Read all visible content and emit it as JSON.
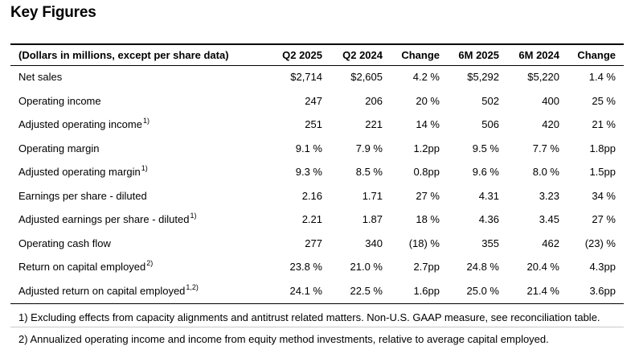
{
  "title": "Key Figures",
  "columns": [
    "(Dollars in millions, except per share data)",
    "Q2 2025",
    "Q2 2024",
    "Change",
    "6M 2025",
    "6M 2024",
    "Change"
  ],
  "rows": [
    {
      "label": "Net sales",
      "sup": "",
      "values": [
        "$2,714",
        "$2,605",
        "4.2 %",
        "$5,292",
        "$5,220",
        "1.4 %"
      ]
    },
    {
      "label": "Operating income",
      "sup": "",
      "values": [
        "247",
        "206",
        "20 %",
        "502",
        "400",
        "25 %"
      ]
    },
    {
      "label": "Adjusted operating income",
      "sup": "1)",
      "values": [
        "251",
        "221",
        "14 %",
        "506",
        "420",
        "21 %"
      ]
    },
    {
      "label": "Operating margin",
      "sup": "",
      "values": [
        "9.1 %",
        "7.9 %",
        "1.2pp",
        "9.5 %",
        "7.7 %",
        "1.8pp"
      ]
    },
    {
      "label": "Adjusted operating margin",
      "sup": "1)",
      "values": [
        "9.3 %",
        "8.5 %",
        "0.8pp",
        "9.6 %",
        "8.0 %",
        "1.5pp"
      ]
    },
    {
      "label": "Earnings per share - diluted",
      "sup": "",
      "values": [
        "2.16",
        "1.71",
        "27 %",
        "4.31",
        "3.23",
        "34 %"
      ]
    },
    {
      "label": "Adjusted earnings per share - diluted",
      "sup": "1)",
      "values": [
        "2.21",
        "1.87",
        "18 %",
        "4.36",
        "3.45",
        "27 %"
      ]
    },
    {
      "label": "Operating cash flow",
      "sup": "",
      "values": [
        "277",
        "340",
        "(18) %",
        "355",
        "462",
        "(23) %"
      ]
    },
    {
      "label": "Return on capital employed",
      "sup": "2)",
      "values": [
        "23.8 %",
        "21.0 %",
        "2.7pp",
        "24.8 %",
        "20.4 %",
        "4.3pp"
      ]
    },
    {
      "label": "Adjusted return on capital employed",
      "sup": "1,2)",
      "values": [
        "24.1 %",
        "22.5 %",
        "1.6pp",
        "25.0 %",
        "21.4 %",
        "3.6pp"
      ]
    }
  ],
  "footnotes": [
    "1) Excluding effects from capacity alignments and antitrust related matters. Non-U.S. GAAP measure, see reconciliation table.",
    "2) Annualized operating income and income from equity method investments, relative to average capital employed."
  ]
}
